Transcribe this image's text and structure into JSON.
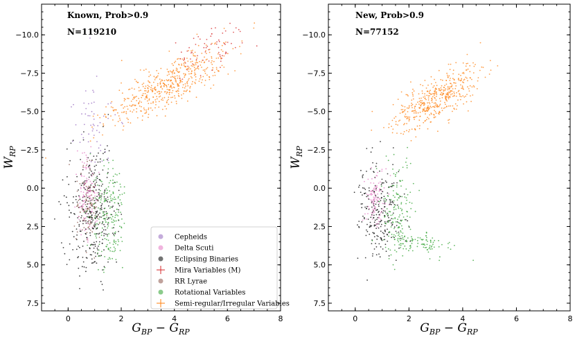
{
  "chart_data": [
    {
      "type": "scatter",
      "title": "",
      "xlabel": "G_BP − G_RP",
      "ylabel": "W_RP",
      "xlim": [
        -1,
        8
      ],
      "ylim": [
        8,
        -12
      ],
      "x_ticks": [
        0,
        2,
        4,
        6,
        8
      ],
      "y_ticks": [
        -10.0,
        -7.5,
        -5.0,
        -2.5,
        0.0,
        2.5,
        5.0,
        7.5
      ],
      "x_tick_labels": [
        "0",
        "2",
        "4",
        "6",
        "8"
      ],
      "y_tick_labels": [
        "−10.0",
        "−7.5",
        "−5.0",
        "−2.5",
        "0.0",
        "2.5",
        "5.0",
        "7.5"
      ],
      "annotations": [
        "Known, Prob>0.9",
        "N=119210"
      ],
      "legend_position": "lower-right",
      "legend": [
        {
          "name": "Cepheids",
          "color": "#9467bd",
          "marker": "dot"
        },
        {
          "name": "Delta Scuti",
          "color": "#e377c2",
          "marker": "dot"
        },
        {
          "name": "Eclipsing Binaries",
          "color": "#000000",
          "marker": "dot"
        },
        {
          "name": "Mira Variables (M)",
          "color": "#d62728",
          "marker": "plus"
        },
        {
          "name": "RR Lyrae",
          "color": "#8c564b",
          "marker": "dot"
        },
        {
          "name": "Rotational Variables",
          "color": "#2ca02c",
          "marker": "dot"
        },
        {
          "name": "Semi-regular/Irregular Variables",
          "color": "#ff7f0e",
          "marker": "plus"
        }
      ],
      "series": [
        {
          "name": "Semi-regular/Irregular Variables",
          "color": "#ff7f0e",
          "center": [
            3.8,
            -6.8
          ],
          "spread": [
            1.15,
            1.35
          ],
          "corr": -0.82,
          "count": 520
        },
        {
          "name": "Mira Variables (M)",
          "color": "#d62728",
          "center": [
            5.3,
            -9.0
          ],
          "spread": [
            0.6,
            0.8
          ],
          "corr": -0.5,
          "count": 70
        },
        {
          "name": "Cepheids",
          "color": "#9467bd",
          "center": [
            1.0,
            -4.0
          ],
          "spread": [
            0.35,
            1.5
          ],
          "corr": 0.0,
          "count": 55
        },
        {
          "name": "Eclipsing Binaries",
          "color": "#000000",
          "center": [
            0.9,
            1.5
          ],
          "spread": [
            0.45,
            2.1
          ],
          "corr": 0.0,
          "count": 340
        },
        {
          "name": "Rotational Variables",
          "color": "#2ca02c",
          "center": [
            1.55,
            1.8
          ],
          "spread": [
            0.35,
            1.7
          ],
          "corr": 0.0,
          "count": 200
        },
        {
          "name": "RR Lyrae",
          "color": "#8c564b",
          "center": [
            0.75,
            1.2
          ],
          "spread": [
            0.22,
            1.3
          ],
          "corr": 0.0,
          "count": 110
        },
        {
          "name": "Delta Scuti",
          "color": "#e377c2",
          "center": [
            0.7,
            0.5
          ],
          "spread": [
            0.2,
            1.2
          ],
          "corr": 0.0,
          "count": 110
        }
      ]
    },
    {
      "type": "scatter",
      "title": "",
      "xlabel": "G_BP − G_RP",
      "ylabel": "W_RP",
      "xlim": [
        -1,
        8
      ],
      "ylim": [
        8,
        -12
      ],
      "x_ticks": [
        0,
        2,
        4,
        6,
        8
      ],
      "y_ticks": [
        -10.0,
        -7.5,
        -5.0,
        -2.5,
        0.0,
        2.5,
        5.0,
        7.5
      ],
      "x_tick_labels": [
        "0",
        "2",
        "4",
        "6",
        "8"
      ],
      "y_tick_labels": [
        "−10.0",
        "−7.5",
        "−5.0",
        "−2.5",
        "0.0",
        "2.5",
        "5.0",
        "7.5"
      ],
      "annotations": [
        "New, Prob>0.9",
        "N=77152"
      ],
      "series": [
        {
          "name": "Semi-regular/Irregular Variables",
          "color": "#ff7f0e",
          "center": [
            3.0,
            -5.8
          ],
          "spread": [
            0.8,
            1.05
          ],
          "corr": -0.7,
          "count": 460
        },
        {
          "name": "Eclipsing Binaries",
          "color": "#000000",
          "center": [
            0.9,
            1.6
          ],
          "spread": [
            0.4,
            1.6
          ],
          "corr": 0.0,
          "count": 240
        },
        {
          "name": "Rotational Variables",
          "color": "#2ca02c",
          "center": [
            1.6,
            1.5
          ],
          "spread": [
            0.3,
            1.6
          ],
          "corr": 0.0,
          "count": 150
        },
        {
          "name": "Rotational Variables",
          "color": "#2ca02c",
          "center": [
            2.4,
            3.6
          ],
          "spread": [
            0.55,
            0.35
          ],
          "corr": 0.3,
          "count": 90
        },
        {
          "name": "Delta Scuti",
          "color": "#e377c2",
          "center": [
            0.75,
            0.5
          ],
          "spread": [
            0.22,
            1.0
          ],
          "corr": 0.0,
          "count": 100
        }
      ]
    }
  ]
}
